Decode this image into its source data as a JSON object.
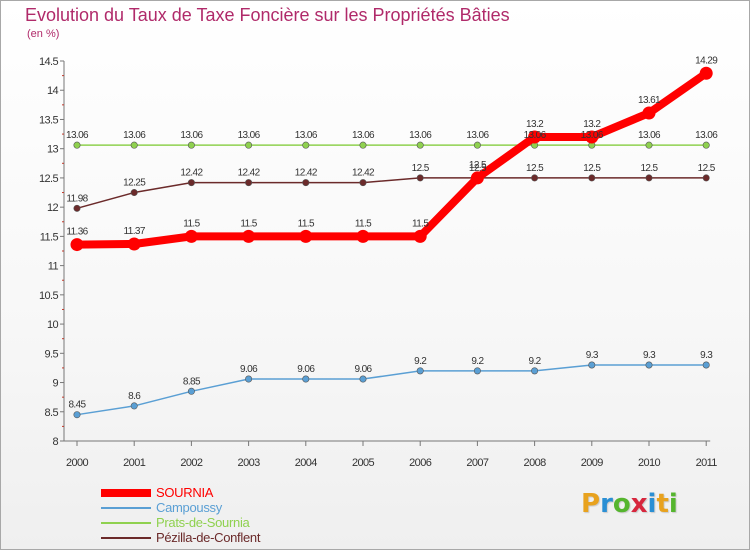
{
  "chart_data": {
    "type": "line",
    "title": "Evolution du Taux de Taxe Foncière sur les Propriétés Bâties",
    "unit_label": "(en %)",
    "xlabel": "",
    "ylabel": "(en %)",
    "ylim": [
      8,
      14.5
    ],
    "yticks": [
      "8",
      "8.5",
      "9",
      "9.5",
      "10",
      "10.5",
      "11",
      "11.5",
      "12",
      "12.5",
      "13",
      "13.5",
      "14",
      "14.5"
    ],
    "categories": [
      "2000",
      "2001",
      "2002",
      "2003",
      "2004",
      "2005",
      "2006",
      "2007",
      "2008",
      "2009",
      "2010",
      "2011"
    ],
    "grid": false,
    "legend_position": "bottom-left",
    "series": [
      {
        "name": "Prats-de-Sournia",
        "color": "#8fd14f",
        "values": [
          13.06,
          13.06,
          13.06,
          13.06,
          13.06,
          13.06,
          13.06,
          13.06,
          13.06,
          13.06,
          13.06,
          13.06
        ],
        "labels": [
          "13.06",
          "13.06",
          "13.06",
          "13.06",
          "13.06",
          "13.06",
          "13.06",
          "13.06",
          "13.06",
          "13.06",
          "13.06",
          "13.06"
        ]
      },
      {
        "name": "Pézilla-de-Conflent",
        "color": "#6b2a2a",
        "values": [
          11.98,
          12.25,
          12.42,
          12.42,
          12.42,
          12.42,
          12.5,
          12.5,
          12.5,
          12.5,
          12.5,
          12.5
        ],
        "labels": [
          "11.98",
          "12.25",
          "12.42",
          "12.42",
          "12.42",
          "12.42",
          "12.5",
          "12.5",
          "12.5",
          "12.5",
          "12.5",
          "12.5"
        ]
      },
      {
        "name": "Campoussy",
        "color": "#5a9fd4",
        "values": [
          8.45,
          8.6,
          8.85,
          9.06,
          9.06,
          9.06,
          9.2,
          9.2,
          9.2,
          9.3,
          9.3,
          9.3
        ],
        "labels": [
          "8.45",
          "8.6",
          "8.85",
          "9.06",
          "9.06",
          "9.06",
          "9.2",
          "9.2",
          "9.2",
          "9.3",
          "9.3",
          "9.3"
        ]
      },
      {
        "name": "SOURNIA",
        "color": "#ff0000",
        "values": [
          11.36,
          11.37,
          11.5,
          11.5,
          11.5,
          11.5,
          11.5,
          12.5,
          13.2,
          13.2,
          13.61,
          14.29
        ],
        "labels": [
          "11.36",
          "11.37",
          "11.5",
          "11.5",
          "11.5",
          "11.5",
          "11.5",
          "12.5",
          "13.2",
          "13.2",
          "13.61",
          "14.29"
        ]
      }
    ],
    "legend": [
      {
        "name": "SOURNIA",
        "color": "#ff0000"
      },
      {
        "name": "Campoussy",
        "color": "#5a9fd4"
      },
      {
        "name": "Prats-de-Sournia",
        "color": "#8fd14f"
      },
      {
        "name": "Pézilla-de-Conflent",
        "color": "#6b2a2a"
      }
    ]
  },
  "brand": {
    "text": "Proxiti",
    "letters": [
      "P",
      "r",
      "o",
      "x",
      "i",
      "t",
      "i"
    ],
    "letter_colors": [
      "#e8a21e",
      "#2a8fd4",
      "#55b52e",
      "#d7263d",
      "#2a8fd4",
      "#e8a21e",
      "#55b52e"
    ]
  }
}
